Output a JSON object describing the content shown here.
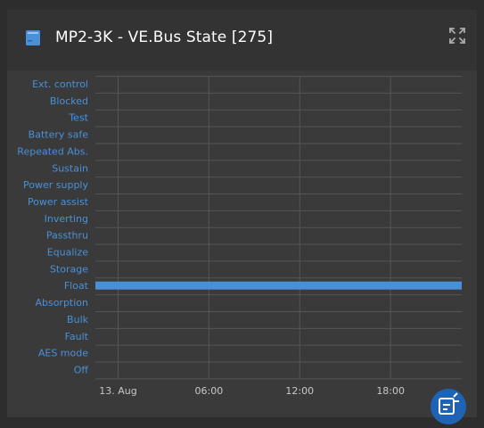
{
  "header": {
    "title": "MP2-3K - VE.Bus State [275]",
    "device_icon": "multiplus-device-icon",
    "expand_icon": "expand-icon"
  },
  "colors": {
    "accent": "#4a90d9",
    "label": "#4a90d9",
    "grid": "#555555",
    "bar": "#4a90d9",
    "fab": "#1e63b5"
  },
  "fab": {
    "icon": "feedback-icon"
  },
  "chart_data": {
    "type": "bar",
    "orientation": "horizontal",
    "categories": [
      "Ext. control",
      "Blocked",
      "Test",
      "Battery safe",
      "Repeated Abs.",
      "Sustain",
      "Power supply",
      "Power assist",
      "Inverting",
      "Passthru",
      "Equalize",
      "Storage",
      "Float",
      "Absorption",
      "Bulk",
      "Fault",
      "AES mode",
      "Off"
    ],
    "x_ticks": [
      "13. Aug",
      "06:00",
      "12:00",
      "18:00"
    ],
    "x_tick_hours": [
      0,
      6,
      12,
      18
    ],
    "xlim_hours": [
      -1.5,
      22.7
    ],
    "grid": true,
    "legend": "none",
    "bars": [
      {
        "state": "Float",
        "start_hour": -1.5,
        "end_hour": 22.7
      }
    ]
  }
}
